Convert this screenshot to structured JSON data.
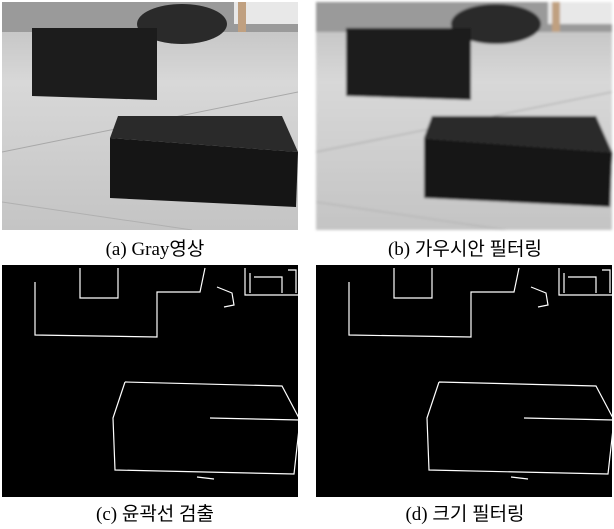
{
  "panels": [
    {
      "caption": "(a) Gray영상"
    },
    {
      "caption": "(b) 가우시안 필터링"
    },
    {
      "caption": "(c) 윤곽선 검출"
    },
    {
      "caption": "(d) 크기 필터링"
    }
  ]
}
